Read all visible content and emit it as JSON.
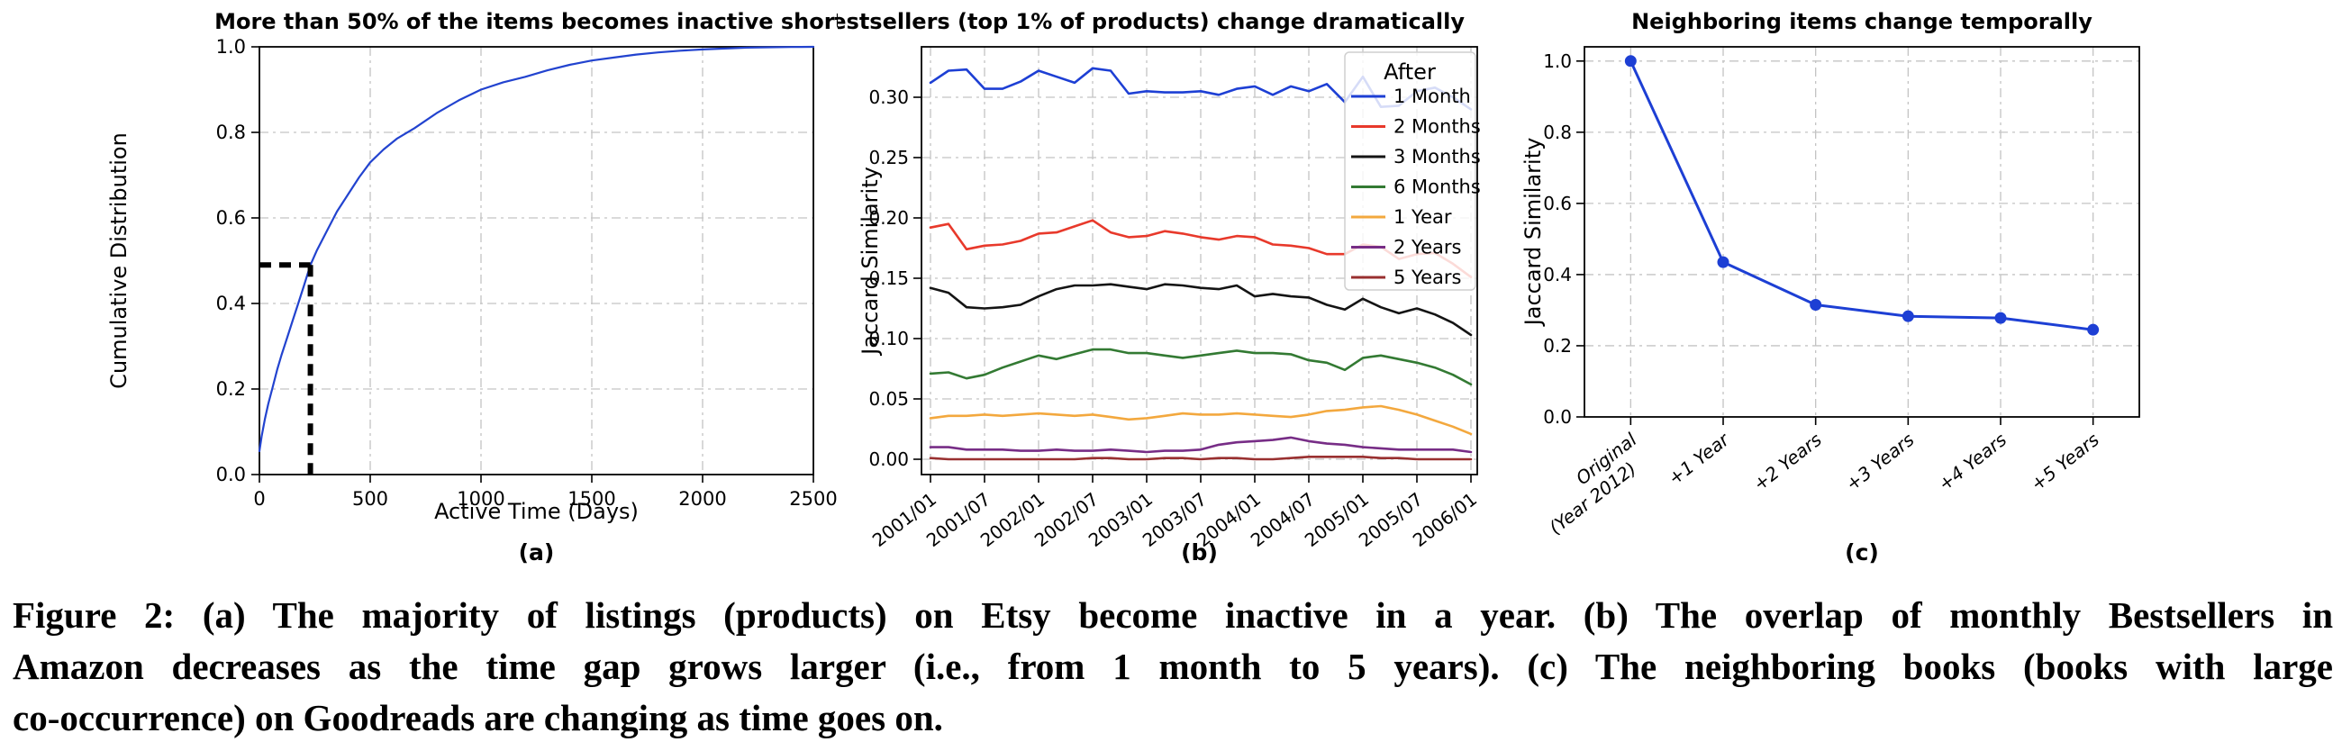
{
  "figure": {
    "caption_lines": [
      "Figure 2: (a) The majority of listings (products) on Etsy become inactive in a year. (b) The overlap of monthly Bestsellers in",
      "Amazon decreases as the time gap grows larger (i.e., from 1 month to 5 years). (c) The neighboring books (books with large",
      "co-occurrence) on Goodreads are changing as time goes on."
    ]
  },
  "chart_data": [
    {
      "id": "a",
      "type": "line",
      "title": "More than 50% of the items becomes inactive shortly",
      "xlabel": "Active Time (Days)",
      "ylabel": "Cumulative Distribution",
      "sublabel": "(a)",
      "xlim": [
        0,
        2500
      ],
      "ylim": [
        0.0,
        1.0
      ],
      "xticks": [
        0,
        500,
        1000,
        1500,
        2000,
        2500
      ],
      "yticks": [
        "0.0",
        "0.2",
        "0.4",
        "0.6",
        "0.8",
        "1.0"
      ],
      "grid": true,
      "line_color": "#2243cf",
      "curve": {
        "x": [
          0,
          10,
          25,
          40,
          60,
          80,
          100,
          125,
          150,
          175,
          200,
          230,
          260,
          300,
          350,
          400,
          450,
          500,
          560,
          620,
          700,
          800,
          900,
          1000,
          1100,
          1200,
          1300,
          1400,
          1500,
          1600,
          1700,
          1800,
          1900,
          2000,
          2100,
          2200,
          2300,
          2400,
          2500
        ],
        "y": [
          0.055,
          0.09,
          0.13,
          0.165,
          0.205,
          0.245,
          0.28,
          0.32,
          0.36,
          0.4,
          0.44,
          0.49,
          0.525,
          0.565,
          0.615,
          0.655,
          0.695,
          0.73,
          0.76,
          0.785,
          0.81,
          0.845,
          0.875,
          0.9,
          0.917,
          0.93,
          0.945,
          0.958,
          0.968,
          0.975,
          0.982,
          0.987,
          0.991,
          0.994,
          0.996,
          0.998,
          0.999,
          0.9995,
          1.0
        ]
      },
      "annotation": {
        "type": "dashed-crosshair",
        "x": 230,
        "y": 0.49,
        "color": "#000000"
      }
    },
    {
      "id": "b",
      "type": "line",
      "title": "The bestsellers (top 1% of products) change dramatically",
      "ylabel": "Jaccard Similarity",
      "sublabel": "(b)",
      "ylim": [
        0.0,
        0.335
      ],
      "yticks": [
        "0.00",
        "0.05",
        "0.10",
        "0.15",
        "0.20",
        "0.25",
        "0.30"
      ],
      "xtick_labels": [
        "2001/01",
        "2001/07",
        "2002/01",
        "2002/07",
        "2003/01",
        "2003/07",
        "2004/01",
        "2004/07",
        "2005/01",
        "2005/07",
        "2006/01"
      ],
      "grid": true,
      "legend": {
        "title": "After",
        "position": "upper right"
      },
      "series": [
        {
          "name": "1 Month",
          "color": "#1d3fd4",
          "values": [
            0.312,
            0.322,
            0.323,
            0.307,
            0.307,
            0.313,
            0.322,
            0.317,
            0.312,
            0.324,
            0.322,
            0.303,
            0.305,
            0.304,
            0.304,
            0.305,
            0.302,
            0.307,
            0.309,
            0.302,
            0.309,
            0.305,
            0.311,
            0.296,
            0.317,
            0.292,
            0.293,
            0.305,
            0.308,
            0.3,
            0.29
          ]
        },
        {
          "name": "2 Months",
          "color": "#e8392b",
          "values": [
            0.192,
            0.195,
            0.174,
            0.177,
            0.178,
            0.181,
            0.187,
            0.188,
            0.193,
            0.198,
            0.188,
            0.184,
            0.185,
            0.189,
            0.187,
            0.184,
            0.182,
            0.185,
            0.184,
            0.178,
            0.177,
            0.175,
            0.17,
            0.17,
            0.178,
            0.176,
            0.166,
            0.17,
            0.171,
            0.162,
            0.151
          ]
        },
        {
          "name": "3 Months",
          "color": "#141414",
          "values": [
            0.142,
            0.138,
            0.126,
            0.125,
            0.126,
            0.128,
            0.135,
            0.141,
            0.144,
            0.144,
            0.145,
            0.143,
            0.141,
            0.145,
            0.144,
            0.142,
            0.141,
            0.144,
            0.135,
            0.137,
            0.135,
            0.134,
            0.128,
            0.124,
            0.133,
            0.126,
            0.121,
            0.125,
            0.12,
            0.113,
            0.103
          ]
        },
        {
          "name": "6 Months",
          "color": "#337a33",
          "values": [
            0.071,
            0.072,
            0.067,
            0.07,
            0.076,
            0.081,
            0.086,
            0.083,
            0.087,
            0.091,
            0.091,
            0.088,
            0.088,
            0.086,
            0.084,
            0.086,
            0.088,
            0.09,
            0.088,
            0.088,
            0.087,
            0.082,
            0.08,
            0.074,
            0.084,
            0.086,
            0.083,
            0.08,
            0.076,
            0.07,
            0.062
          ]
        },
        {
          "name": "1 Year",
          "color": "#f3a83e",
          "values": [
            0.034,
            0.036,
            0.036,
            0.037,
            0.036,
            0.037,
            0.038,
            0.037,
            0.036,
            0.037,
            0.035,
            0.033,
            0.034,
            0.036,
            0.038,
            0.037,
            0.037,
            0.038,
            0.037,
            0.036,
            0.035,
            0.037,
            0.04,
            0.041,
            0.043,
            0.044,
            0.041,
            0.037,
            0.032,
            0.027,
            0.021
          ]
        },
        {
          "name": "2 Years",
          "color": "#772d86",
          "values": [
            0.01,
            0.01,
            0.008,
            0.008,
            0.008,
            0.007,
            0.007,
            0.008,
            0.007,
            0.007,
            0.008,
            0.007,
            0.006,
            0.007,
            0.007,
            0.008,
            0.012,
            0.014,
            0.015,
            0.016,
            0.018,
            0.015,
            0.013,
            0.012,
            0.01,
            0.009,
            0.008,
            0.008,
            0.008,
            0.008,
            0.006
          ]
        },
        {
          "name": "5 Years",
          "color": "#993030",
          "values": [
            0.001,
            0.0,
            0.0,
            0.0,
            0.0,
            0.0,
            0.0,
            0.0,
            0.0,
            0.001,
            0.001,
            0.0,
            0.0,
            0.001,
            0.001,
            0.0,
            0.001,
            0.001,
            0.0,
            0.0,
            0.001,
            0.002,
            0.002,
            0.002,
            0.002,
            0.001,
            0.001,
            0.0,
            0.0,
            0.0,
            0.0
          ]
        }
      ]
    },
    {
      "id": "c",
      "type": "line",
      "title": "Neighboring items change temporally",
      "ylabel": "Jaccard Similarity",
      "sublabel": "(c)",
      "ylim": [
        0.0,
        1.04
      ],
      "yticks": [
        "0.0",
        "0.2",
        "0.4",
        "0.6",
        "0.8",
        "1.0"
      ],
      "categories": [
        [
          "Original",
          "(Year 2012)"
        ],
        [
          "+1 Year"
        ],
        [
          "+2 Years"
        ],
        [
          "+3 Years"
        ],
        [
          "+4 Years"
        ],
        [
          "+5 Years"
        ]
      ],
      "values": [
        1.0,
        0.435,
        0.315,
        0.283,
        0.278,
        0.245
      ],
      "grid": true,
      "line_color": "#1d3fd4",
      "marker": "circle"
    }
  ],
  "style": {
    "grid_color": "#c4c4c4",
    "spine_color": "#000000",
    "legend_border": "#cfcfcf",
    "legend_fill": "#ffffff"
  }
}
